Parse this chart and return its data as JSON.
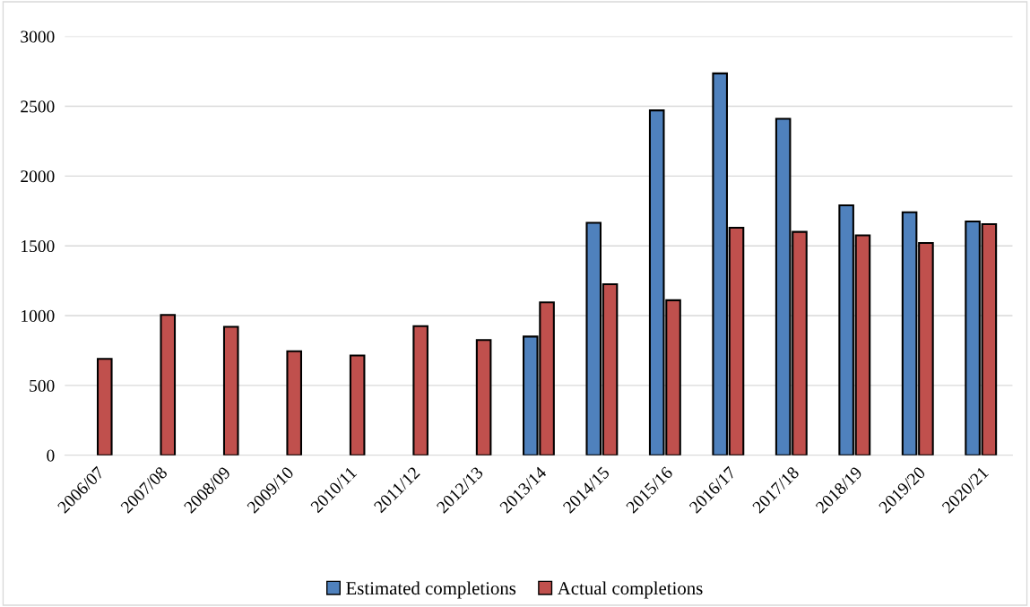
{
  "chart_data": {
    "type": "bar",
    "categories": [
      "2006/07",
      "2007/08",
      "2008/09",
      "2009/10",
      "2010/11",
      "2011/12",
      "2012/13",
      "2013/14",
      "2014/15",
      "2015/16",
      "2016/17",
      "2017/18",
      "2018/19",
      "2019/20",
      "2020/21"
    ],
    "series": [
      {
        "name": "Estimated completions",
        "color": "#4f81bd",
        "values": [
          null,
          null,
          null,
          null,
          null,
          null,
          null,
          850,
          1665,
          2470,
          2735,
          2410,
          1790,
          1740,
          1675
        ]
      },
      {
        "name": "Actual completions",
        "color": "#c0504d",
        "values": [
          690,
          1005,
          920,
          745,
          715,
          925,
          825,
          1095,
          1225,
          1110,
          1630,
          1600,
          1575,
          1520,
          1655
        ]
      }
    ],
    "ylim": [
      0,
      3000
    ],
    "yticks": [
      0,
      500,
      1000,
      1500,
      2000,
      2500,
      3000
    ],
    "grid": "y",
    "legend": "bottom"
  }
}
